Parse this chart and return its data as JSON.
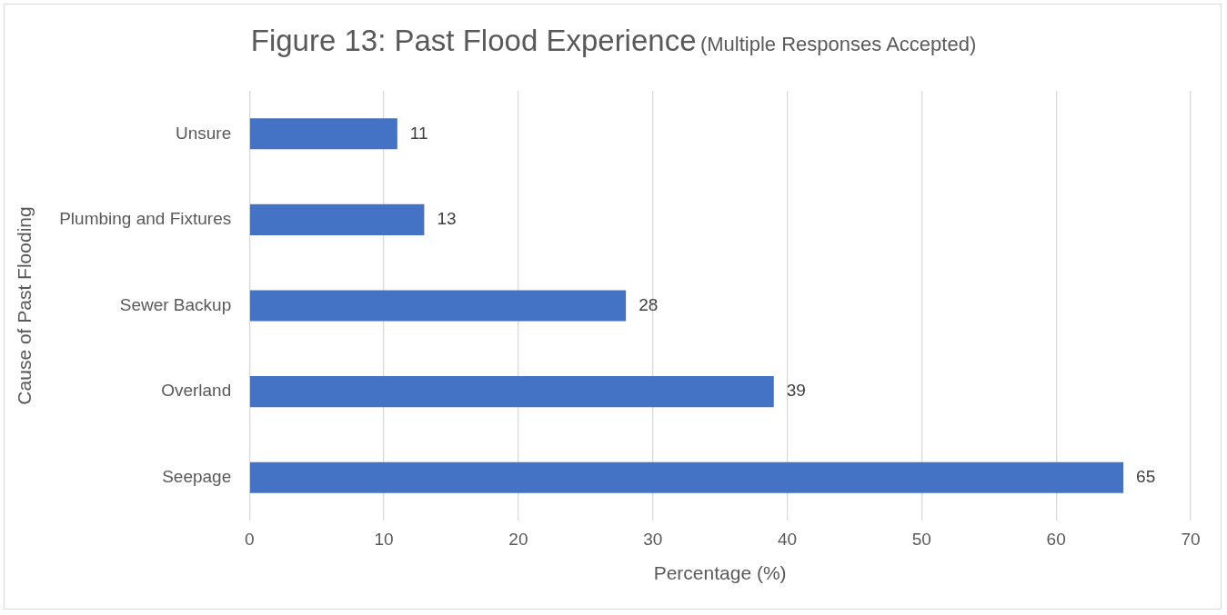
{
  "chart_data": {
    "type": "bar",
    "orientation": "horizontal",
    "title": "Figure 13: Past Flood Experience",
    "subtitle": "(Multiple Responses Accepted)",
    "xlabel": "Percentage (%)",
    "ylabel": "Cause of Past Flooding",
    "categories": [
      "Unsure",
      "Plumbing and Fixtures",
      "Sewer Backup",
      "Overland",
      "Seepage"
    ],
    "values": [
      11,
      13,
      28,
      39,
      65
    ],
    "color": "#4472c4",
    "xlim": [
      0,
      70
    ],
    "xticks": [
      0,
      10,
      20,
      30,
      40,
      50,
      60,
      70
    ],
    "grid": "x",
    "data_labels": true
  }
}
